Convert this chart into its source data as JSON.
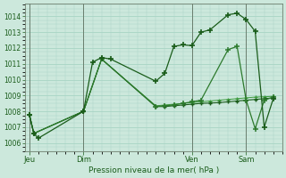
{
  "background_color": "#cce8dc",
  "grid_color": "#a8d4c4",
  "line_color_dark": "#1a5c1a",
  "line_color_medium": "#2d7a2d",
  "line_color_light": "#3d9a3d",
  "ylabel_text": "Pression niveau de la mer( hPa )",
  "x_tick_labels": [
    "Jeu",
    "Dim",
    "Ven",
    "Sam"
  ],
  "x_tick_positions": [
    0,
    6,
    18,
    24
  ],
  "ylim": [
    1005.5,
    1014.8
  ],
  "yticks": [
    1006,
    1007,
    1008,
    1009,
    1010,
    1011,
    1012,
    1013,
    1014
  ],
  "xlim": [
    -0.5,
    28
  ],
  "series1_x": [
    0,
    0.5,
    1,
    6,
    7,
    8,
    9,
    14,
    15,
    16,
    17,
    18,
    19,
    20,
    22,
    23,
    24,
    25,
    26,
    27
  ],
  "series1_y": [
    1007.8,
    1006.6,
    1006.3,
    1008.0,
    1011.1,
    1011.4,
    1011.3,
    1009.9,
    1010.4,
    1012.1,
    1012.2,
    1012.15,
    1013.0,
    1013.15,
    1014.1,
    1014.2,
    1013.8,
    1013.05,
    1007.0,
    1008.8
  ],
  "series2_x": [
    0,
    0.5,
    6,
    8,
    14,
    15,
    16,
    17,
    18,
    19,
    20,
    21,
    22,
    23,
    24,
    25,
    26,
    27
  ],
  "series2_y": [
    1007.8,
    1006.6,
    1008.0,
    1011.3,
    1008.3,
    1008.3,
    1008.35,
    1008.4,
    1008.45,
    1008.5,
    1008.52,
    1008.55,
    1008.6,
    1008.65,
    1008.7,
    1008.75,
    1008.8,
    1008.85
  ],
  "series3_x": [
    0,
    0.5,
    6,
    8,
    14,
    15,
    16,
    17,
    18,
    19,
    22,
    23,
    24,
    25,
    26,
    27
  ],
  "series3_y": [
    1007.8,
    1006.6,
    1008.0,
    1011.3,
    1008.3,
    1008.35,
    1008.4,
    1008.5,
    1008.6,
    1008.7,
    1011.9,
    1012.1,
    1008.7,
    1006.9,
    1008.7,
    1008.9
  ],
  "series4_x": [
    0,
    0.5,
    6,
    8,
    14,
    15,
    16,
    17,
    18,
    19,
    20,
    21,
    22,
    23,
    24,
    25,
    26,
    27
  ],
  "series4_y": [
    1007.8,
    1006.6,
    1008.0,
    1011.3,
    1008.35,
    1008.4,
    1008.45,
    1008.5,
    1008.55,
    1008.6,
    1008.65,
    1008.7,
    1008.75,
    1008.8,
    1008.85,
    1008.9,
    1008.92,
    1008.95
  ]
}
